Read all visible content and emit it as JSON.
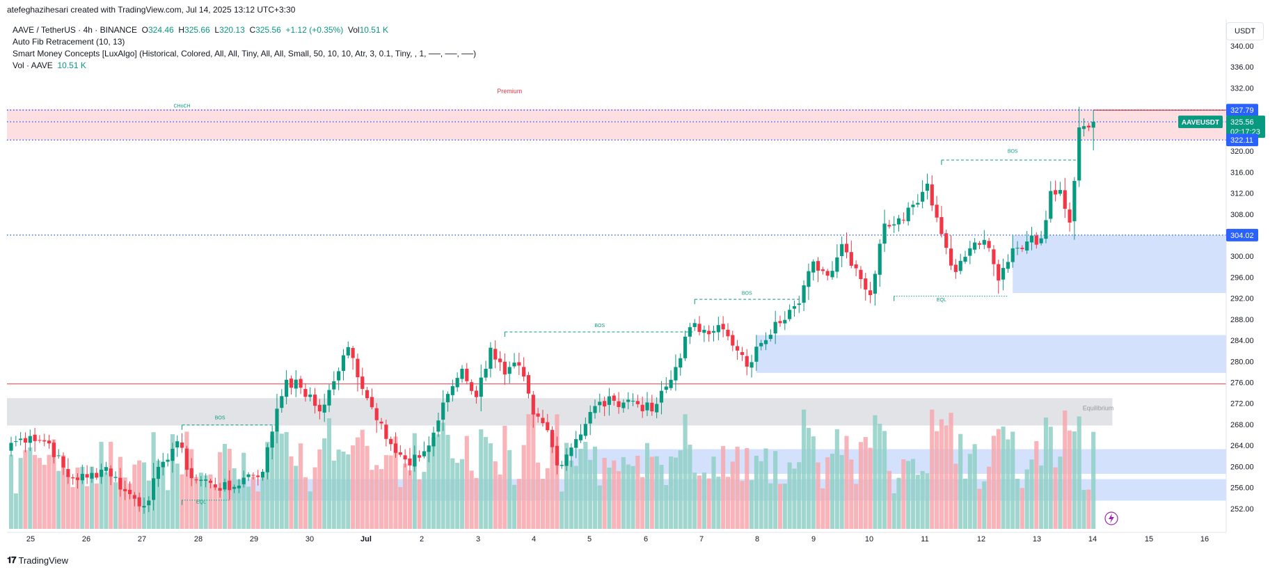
{
  "header": {
    "attribution": "atefeghazihesari created with TradingView.com, Jul 14, 2025 13:12 UTC+3:30"
  },
  "legend": {
    "symbol": "AAVE / TetherUS · 4h · BINANCE",
    "o_label": "O",
    "o_value": "324.46",
    "h_label": "H",
    "h_value": "325.66",
    "l_label": "L",
    "l_value": "320.13",
    "c_label": "C",
    "c_value": "325.56",
    "change": "+1.12 (+0.35%)",
    "vol_label": "Vol",
    "vol_value": "10.51 K",
    "indicator1": "Auto Fib Retracement (10, 13)",
    "indicator2": "Smart Money Concepts [LuxAlgo] (Historical, Colored, All, All, Tiny, All, All, Small, 50, 10, 10, Atr, 3, 0.1, Tiny, , 1, ──, ──, ──)",
    "indicator3_label": "Vol · AAVE",
    "indicator3_value": "10.51 K"
  },
  "currency": "USDT",
  "footer": {
    "brand": "TradingView"
  },
  "colors": {
    "up": "#089981",
    "down": "#f23645",
    "up_vol": "#8fcfc5",
    "down_vol": "#f7a7ad",
    "zone_blue": "#c8d9fb",
    "zone_red": "#fcd6d9",
    "zone_gray": "#dcdee2",
    "badge_blue": "#2962ff",
    "badge_green": "#089981"
  },
  "chart_data": {
    "type": "candlestick",
    "symbol": "AAVEUSDT",
    "ylim": [
      249,
      343
    ],
    "y_ticks": [
      "340.00",
      "336.00",
      "332.00",
      "328.00",
      "324.00",
      "320.00",
      "316.00",
      "312.00",
      "308.00",
      "304.00",
      "300.00",
      "296.00",
      "292.00",
      "288.00",
      "284.00",
      "280.00",
      "276.00",
      "272.00",
      "268.00",
      "264.00",
      "260.00",
      "256.00",
      "252.00"
    ],
    "x_ticks": [
      "25",
      "26",
      "27",
      "28",
      "29",
      "30",
      "Jul",
      "2",
      "3",
      "4",
      "5",
      "6",
      "7",
      "8",
      "9",
      "10",
      "11",
      "12",
      "13",
      "14",
      "15",
      "16"
    ],
    "price_badges": [
      {
        "label": "327.79",
        "value": 327.79,
        "color": "blue"
      },
      {
        "label": "325.56",
        "value": 325.56,
        "color": "green",
        "tag": "AAVEUSDT",
        "countdown": "02:17:23"
      },
      {
        "label": "322.11",
        "value": 322.11,
        "color": "blue"
      },
      {
        "label": "304.02",
        "value": 304.02,
        "color": "blue"
      }
    ],
    "annotations": [
      {
        "text": "Premium",
        "x_index": 105,
        "y": 331.0
      },
      {
        "text": "CHoCH",
        "x_index": 36,
        "y": 328.3
      },
      {
        "text": "Equilibrium",
        "x_index": 229,
        "y": 270.7
      },
      {
        "text": "BOS",
        "x_index": 44,
        "y": 269.0
      },
      {
        "text": "BOS",
        "x_index": 124,
        "y": 286.5
      },
      {
        "text": "BOS",
        "x_index": 155,
        "y": 292.7
      },
      {
        "text": "BOS",
        "x_index": 211,
        "y": 319.7
      },
      {
        "text": "EQL",
        "x_index": 196,
        "y": 291.4
      },
      {
        "text": "EQL",
        "x_index": 40,
        "y": 253.0
      }
    ],
    "levels": [
      {
        "y": 327.79,
        "style": "dotted",
        "color": "blue"
      },
      {
        "y": 325.56,
        "style": "dotted",
        "color": "blue"
      },
      {
        "y": 322.11,
        "style": "dotted",
        "color": "blue"
      },
      {
        "y": 304.02,
        "style": "dotted",
        "color": "blue"
      },
      {
        "y": 275.7,
        "style": "solid",
        "color": "red"
      },
      {
        "y": 327.79,
        "style": "solid",
        "color": "darkred",
        "from_index": 228
      }
    ],
    "zones": [
      {
        "y_top": 328.0,
        "y_bot": 322.1,
        "x_from": 0,
        "color": "red"
      },
      {
        "y_top": 273.0,
        "y_bot": 267.8,
        "x_from": 0,
        "x_to": 232,
        "color": "gray"
      },
      {
        "y_top": 304.0,
        "y_bot": 293.0,
        "x_from": 211,
        "color": "blue"
      },
      {
        "y_top": 285.0,
        "y_bot": 277.8,
        "x_from": 157,
        "color": "blue"
      },
      {
        "y_top": 263.3,
        "y_bot": 258.6,
        "x_from": 118,
        "color": "blue"
      },
      {
        "y_top": 257.6,
        "y_bot": 253.5,
        "x_from": 45,
        "color": "blue"
      }
    ],
    "structure_lines": [
      {
        "y": 267.9,
        "x_from": 36,
        "x_to": 56,
        "style": "dashed",
        "color": "green"
      },
      {
        "y": 285.6,
        "x_from": 104,
        "x_to": 144,
        "style": "dashed",
        "color": "green"
      },
      {
        "y": 291.8,
        "x_from": 144,
        "x_to": 166,
        "style": "dashed",
        "color": "green"
      },
      {
        "y": 318.3,
        "x_from": 196,
        "x_to": 225,
        "style": "dashed",
        "color": "green"
      },
      {
        "y": 292.4,
        "x_from": 186,
        "x_to": 210,
        "style": "dotted",
        "color": "green"
      },
      {
        "y": 253.6,
        "x_from": 36,
        "x_to": 46,
        "style": "dotted",
        "color": "green"
      }
    ],
    "anchors": [
      {
        "idx": 0,
        "close": 264.5
      },
      {
        "idx": 4,
        "close": 265.8
      },
      {
        "idx": 8,
        "close": 264.4
      },
      {
        "idx": 12,
        "close": 258.0
      },
      {
        "idx": 16,
        "close": 257.9
      },
      {
        "idx": 20,
        "close": 259.9
      },
      {
        "idx": 24,
        "close": 255.3
      },
      {
        "idx": 28,
        "close": 252.5
      },
      {
        "idx": 32,
        "close": 260.9
      },
      {
        "idx": 35,
        "close": 264.8
      },
      {
        "idx": 38,
        "close": 257.8
      },
      {
        "idx": 42,
        "close": 256.9
      },
      {
        "idx": 46,
        "close": 255.5
      },
      {
        "idx": 50,
        "close": 258.5
      },
      {
        "idx": 53,
        "close": 259.0
      },
      {
        "idx": 56,
        "close": 271.0
      },
      {
        "idx": 58,
        "close": 276.5
      },
      {
        "idx": 61,
        "close": 275.0
      },
      {
        "idx": 65,
        "close": 270.5
      },
      {
        "idx": 68,
        "close": 276.2
      },
      {
        "idx": 71,
        "close": 282.7
      },
      {
        "idx": 75,
        "close": 273.0
      },
      {
        "idx": 78,
        "close": 268.2
      },
      {
        "idx": 81,
        "close": 262.6
      },
      {
        "idx": 84,
        "close": 260.2
      },
      {
        "idx": 88,
        "close": 264.0
      },
      {
        "idx": 92,
        "close": 273.8
      },
      {
        "idx": 95,
        "close": 278.6
      },
      {
        "idx": 98,
        "close": 273.2
      },
      {
        "idx": 101,
        "close": 282.6
      },
      {
        "idx": 104,
        "close": 277.5
      },
      {
        "idx": 107,
        "close": 279.2
      },
      {
        "idx": 110,
        "close": 269.9
      },
      {
        "idx": 113,
        "close": 266.9
      },
      {
        "idx": 115,
        "close": 260.2
      },
      {
        "idx": 119,
        "close": 265.2
      },
      {
        "idx": 123,
        "close": 271.5
      },
      {
        "idx": 127,
        "close": 272.5
      },
      {
        "idx": 131,
        "close": 272.5
      },
      {
        "idx": 135,
        "close": 270.5
      },
      {
        "idx": 139,
        "close": 276.5
      },
      {
        "idx": 143,
        "close": 286.5
      },
      {
        "idx": 146,
        "close": 286.0
      },
      {
        "idx": 149,
        "close": 286.9
      },
      {
        "idx": 152,
        "close": 283.0
      },
      {
        "idx": 155,
        "close": 279.0
      },
      {
        "idx": 158,
        "close": 283.5
      },
      {
        "idx": 161,
        "close": 287.5
      },
      {
        "idx": 164,
        "close": 289.8
      },
      {
        "idx": 166,
        "close": 291.0
      },
      {
        "idx": 169,
        "close": 299.0
      },
      {
        "idx": 172,
        "close": 296.3
      },
      {
        "idx": 175,
        "close": 302.3
      },
      {
        "idx": 178,
        "close": 297.7
      },
      {
        "idx": 181,
        "close": 292.6
      },
      {
        "idx": 184,
        "close": 306.2
      },
      {
        "idx": 187,
        "close": 307.2
      },
      {
        "idx": 190,
        "close": 309.8
      },
      {
        "idx": 193,
        "close": 313.8
      },
      {
        "idx": 196,
        "close": 304.2
      },
      {
        "idx": 199,
        "close": 297.0
      },
      {
        "idx": 202,
        "close": 301.5
      },
      {
        "idx": 205,
        "close": 303.1
      },
      {
        "idx": 208,
        "close": 295.4
      },
      {
        "idx": 211,
        "close": 301.5
      },
      {
        "idx": 214,
        "close": 302.8
      },
      {
        "idx": 217,
        "close": 303.4
      },
      {
        "idx": 219,
        "close": 312.4
      },
      {
        "idx": 221,
        "close": 312.6
      },
      {
        "idx": 223,
        "close": 306.4
      },
      {
        "idx": 225,
        "close": 324.5
      },
      {
        "idx": 227,
        "close": 324.5
      },
      {
        "idx": 228,
        "close": 325.56
      }
    ],
    "bar_count": 229,
    "volume_max_label": "10.51 K"
  }
}
